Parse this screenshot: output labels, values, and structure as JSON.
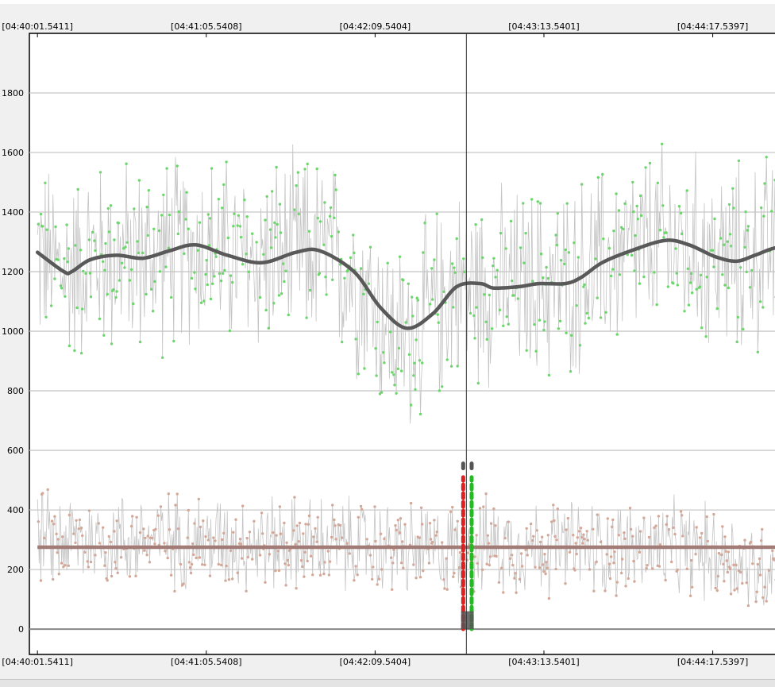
{
  "chart_data": {
    "type": "scatter",
    "x_tick_labels": [
      "[04:40:01.5411]",
      "[04:41:05.5408]",
      "[04:42:09.5404]",
      "[04:43:13.5401]",
      "[04:44:17.5397]"
    ],
    "x_tick_seconds": [
      0,
      64,
      128,
      192,
      256
    ],
    "xlim": [
      -14.2,
      279.6
    ],
    "y_ticks": [
      0,
      200,
      400,
      600,
      800,
      1000,
      1200,
      1400,
      1600,
      1800
    ],
    "ylim": [
      -85,
      2000
    ],
    "grid": true,
    "cursor_x": 162.6,
    "colors": {
      "series_a_points": "#6cd66c",
      "series_b_points": "#d4a898",
      "connect_line": "#c4c4c4",
      "smooth_a": "#595959",
      "smooth_b": "#a27a76",
      "marker_red": "#e02020",
      "marker_green": "#22bb22",
      "marker_gray": "#555555"
    },
    "series": [
      {
        "role": "upper scatter",
        "point_count": 900,
        "smooth_curve": [
          [
            0,
            1265
          ],
          [
            10,
            1200
          ],
          [
            13,
            1200
          ],
          [
            20,
            1240
          ],
          [
            30,
            1255
          ],
          [
            40,
            1245
          ],
          [
            50,
            1270
          ],
          [
            60,
            1290
          ],
          [
            72,
            1255
          ],
          [
            85,
            1230
          ],
          [
            98,
            1265
          ],
          [
            107,
            1270
          ],
          [
            120,
            1200
          ],
          [
            130,
            1080
          ],
          [
            140,
            1010
          ],
          [
            150,
            1060
          ],
          [
            159,
            1150
          ],
          [
            168,
            1160
          ],
          [
            173,
            1145
          ],
          [
            183,
            1150
          ],
          [
            190,
            1160
          ],
          [
            200,
            1160
          ],
          [
            206,
            1180
          ],
          [
            214,
            1230
          ],
          [
            225,
            1270
          ],
          [
            238,
            1305
          ],
          [
            247,
            1290
          ],
          [
            257,
            1250
          ],
          [
            265,
            1235
          ],
          [
            272,
            1255
          ],
          [
            280,
            1280
          ],
          [
            286,
            1270
          ],
          [
            294,
            1220
          ]
        ],
        "noise_center_profile": [
          [
            0,
            1260
          ],
          [
            10,
            1200
          ],
          [
            20,
            1245
          ],
          [
            40,
            1245
          ],
          [
            60,
            1285
          ],
          [
            80,
            1235
          ],
          [
            100,
            1265
          ],
          [
            110,
            1260
          ],
          [
            120,
            1190
          ],
          [
            130,
            1060
          ],
          [
            137,
            960
          ],
          [
            145,
            1020
          ],
          [
            158,
            1150
          ],
          [
            170,
            1150
          ],
          [
            200,
            1160
          ],
          [
            220,
            1250
          ],
          [
            238,
            1300
          ],
          [
            255,
            1250
          ],
          [
            265,
            1230
          ],
          [
            280,
            1275
          ],
          [
            294,
            1210
          ]
        ]
      },
      {
        "role": "lower scatter",
        "point_count": 900,
        "smooth_level": 275,
        "smooth_range": [
          0,
          294
        ],
        "noise_center_profile": [
          [
            0,
            300
          ],
          [
            50,
            300
          ],
          [
            120,
            280
          ],
          [
            150,
            260
          ],
          [
            165,
            280
          ],
          [
            240,
            270
          ],
          [
            262,
            250
          ],
          [
            272,
            200
          ],
          [
            282,
            230
          ],
          [
            294,
            230
          ]
        ]
      }
    ],
    "selection_markers": [
      {
        "color_key": "marker_red",
        "x": 161.4,
        "y_range": [
          0,
          510
        ]
      },
      {
        "color_key": "marker_green",
        "x": 164.6,
        "y_range": [
          0,
          510
        ]
      },
      {
        "color_key": "marker_gray",
        "x": 161.4,
        "y_range": [
          540,
          565
        ]
      },
      {
        "color_key": "marker_gray",
        "x": 164.6,
        "y_range": [
          540,
          565
        ]
      }
    ]
  }
}
